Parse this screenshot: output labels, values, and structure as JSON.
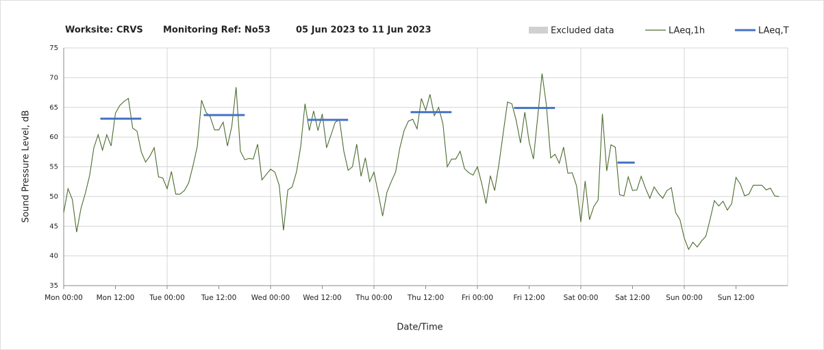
{
  "chart_data": {
    "type": "line",
    "title": [
      "Worksite: CRVS",
      "Monitoring Ref: No53",
      "05 Jun 2023 to 11 Jun 2023"
    ],
    "x_label": "Date/Time",
    "y_label": "Sound Pressure Level, dB",
    "legend": [
      {
        "name": "Excluded data",
        "color": "#d0d0d0"
      }
    ],
    "legend_position": "top-right",
    "series": [
      {
        "name": "LAeq,1h",
        "color": "#4a6b2e",
        "x": [
          0,
          1,
          2,
          3,
          4,
          5,
          6,
          7,
          8,
          9,
          10,
          11,
          12,
          13,
          14,
          15,
          16,
          17,
          18,
          19,
          20,
          21,
          22,
          23,
          24,
          25,
          26,
          27,
          28,
          29,
          30,
          31,
          32,
          33,
          34,
          35,
          36,
          37,
          38,
          39,
          40,
          41,
          42,
          43,
          44,
          45,
          46,
          47,
          48,
          49,
          50,
          51,
          52,
          53,
          54,
          55,
          56,
          57,
          58,
          59,
          60,
          61,
          62,
          63,
          64,
          65,
          66,
          67,
          68,
          69,
          70,
          71,
          72,
          73,
          74,
          75,
          76,
          77,
          78,
          79,
          80,
          81,
          82,
          83,
          84,
          85,
          86,
          87,
          88,
          89,
          90,
          91,
          92,
          93,
          94,
          95,
          96,
          97,
          98,
          99,
          100,
          101,
          102,
          103,
          104,
          105,
          106,
          107,
          108,
          109,
          110,
          111,
          112,
          113,
          114,
          115,
          116,
          117,
          118,
          119,
          120,
          121,
          122,
          123,
          124,
          125,
          126,
          127,
          128,
          129,
          130,
          131,
          132,
          133,
          134,
          135,
          136,
          137,
          138,
          139,
          140,
          141,
          142,
          143,
          144,
          145,
          146,
          147,
          148,
          149,
          150,
          151,
          152,
          153,
          154,
          155,
          156,
          157,
          158,
          159,
          160,
          161,
          162,
          163,
          164,
          165,
          166
        ],
        "values": [
          47.3,
          51.3,
          49.5,
          44,
          48,
          50.5,
          53.5,
          58.2,
          60.4,
          57.8,
          60.4,
          58.5,
          64,
          65.3,
          66,
          66.5,
          61.5,
          61,
          57.5,
          55.8,
          56.8,
          58.2,
          53.3,
          53.1,
          51.3,
          54.2,
          50.4,
          50.4,
          51,
          52.3,
          55.2,
          58.4,
          66.2,
          64.2,
          63.4,
          61.2,
          61.2,
          62.5,
          58.5,
          61.8,
          68.4,
          57.6,
          56.2,
          56.4,
          56.3,
          58.8,
          52.8,
          53.7,
          54.6,
          54.1,
          51.9,
          44.3,
          51.1,
          51.6,
          54.1,
          58.4,
          65.6,
          61.1,
          64.4,
          61.1,
          63.9,
          58.2,
          60.3,
          62.5,
          62.9,
          57.6,
          54.4,
          55,
          58.8,
          53.4,
          56.5,
          52.5,
          54.1,
          50.5,
          46.7,
          50.7,
          52.5,
          54.1,
          58.2,
          61.1,
          62.7,
          63,
          61.4,
          66.5,
          64.5,
          67.2,
          63.6,
          65,
          62.2,
          55,
          56.3,
          56.3,
          57.6,
          54.7,
          54,
          53.6,
          55,
          52.2,
          48.8,
          53.5,
          51,
          55.5,
          60.8,
          65.9,
          65.6,
          62.8,
          59,
          64.2,
          59.2,
          56.3,
          63.5,
          70.7,
          65.4,
          56.5,
          57.1,
          55.6,
          58.3,
          53.9,
          54,
          51.8,
          45.7,
          52.6,
          46.1,
          48.3,
          49.4,
          63.9,
          54.3,
          58.7,
          58.3,
          50.3,
          50.1,
          53.3,
          51,
          51.1,
          53.4,
          51.4,
          49.7,
          51.6,
          50.5,
          49.7,
          51,
          51.5,
          47.3,
          46.1,
          43,
          41.1,
          42.3,
          41.5,
          42.5,
          43.3,
          46.2,
          49.3,
          48.4,
          49.2,
          47.7,
          48.8,
          53.2,
          52.1,
          50.1,
          50.4,
          51.9,
          51.9,
          51.9,
          51.1,
          51.4,
          50.1,
          50
        ]
      },
      {
        "name": "LAeq,T",
        "color": "#4472c4",
        "segments": [
          {
            "start": 8.5,
            "end": 18,
            "value": 63.1
          },
          {
            "start": 32.5,
            "end": 42,
            "value": 63.7
          },
          {
            "start": 56.5,
            "end": 66,
            "value": 62.9
          },
          {
            "start": 80.5,
            "end": 90,
            "value": 64.2
          },
          {
            "start": 104.5,
            "end": 114,
            "value": 64.9
          },
          {
            "start": 128.5,
            "end": 132.5,
            "value": 55.7
          }
        ]
      }
    ],
    "xlim": [
      0,
      168
    ],
    "xticks": [
      {
        "value": 0,
        "label": "Mon 00:00"
      },
      {
        "value": 12,
        "label": "Mon 12:00"
      },
      {
        "value": 24,
        "label": "Tue 00:00"
      },
      {
        "value": 36,
        "label": "Tue 12:00"
      },
      {
        "value": 48,
        "label": "Wed 00:00"
      },
      {
        "value": 60,
        "label": "Wed 12:00"
      },
      {
        "value": 72,
        "label": "Thu 00:00"
      },
      {
        "value": 84,
        "label": "Thu 12:00"
      },
      {
        "value": 96,
        "label": "Fri 00:00"
      },
      {
        "value": 108,
        "label": "Fri 12:00"
      },
      {
        "value": 120,
        "label": "Sat 00:00"
      },
      {
        "value": 132,
        "label": "Sat 12:00"
      },
      {
        "value": 144,
        "label": "Sun 00:00"
      },
      {
        "value": 156,
        "label": "Sun 12:00"
      }
    ],
    "ylim": [
      35,
      75
    ],
    "yticks": [
      35,
      40,
      45,
      50,
      55,
      60,
      65,
      70,
      75
    ],
    "grid": true
  }
}
